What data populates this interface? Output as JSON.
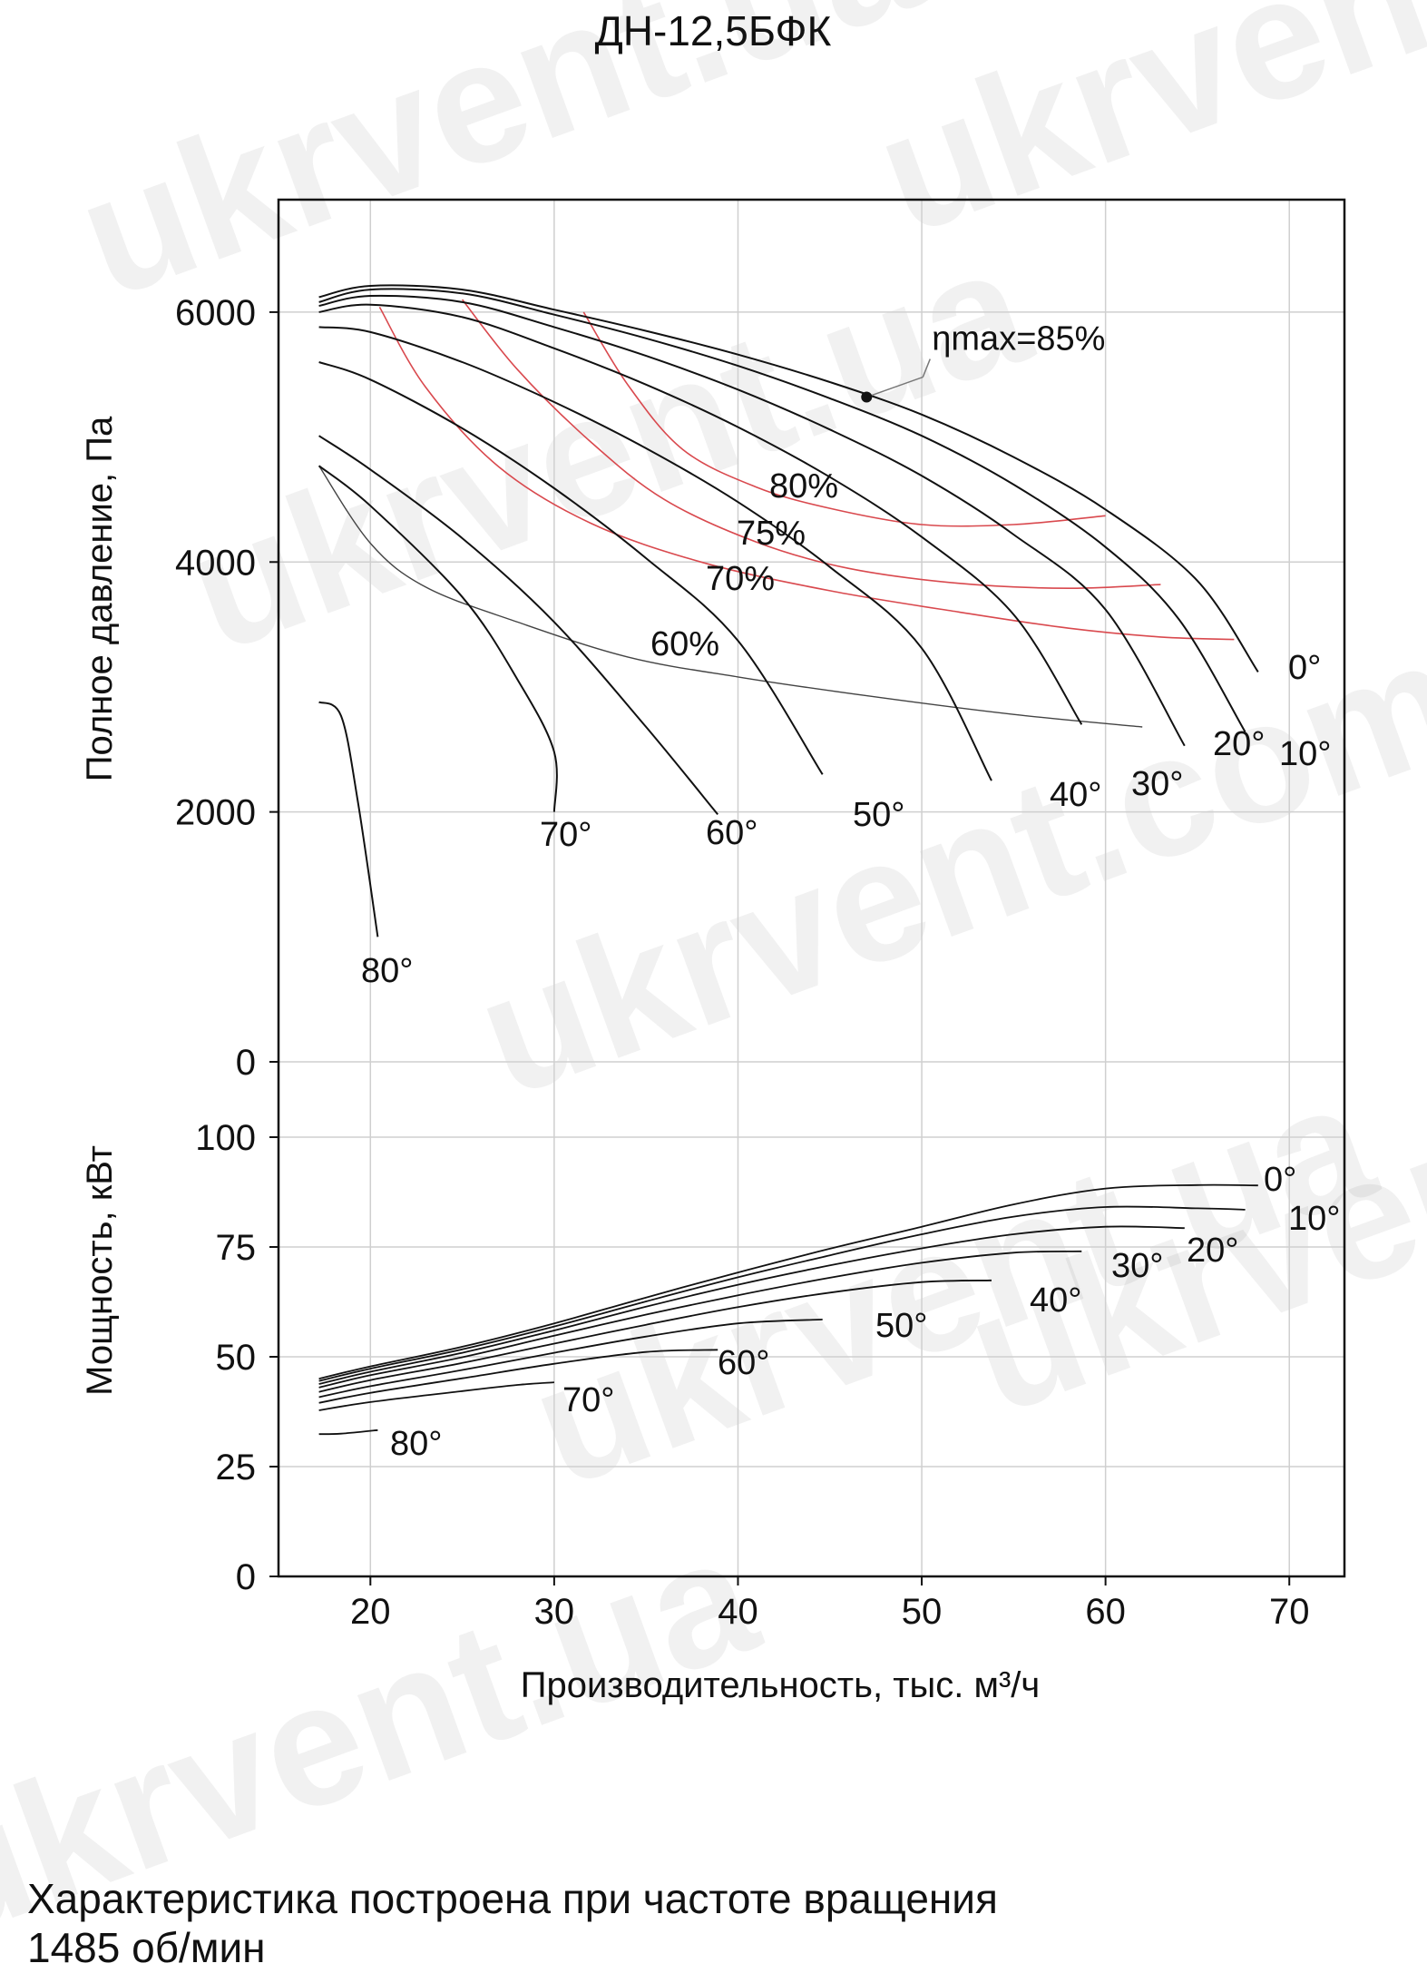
{
  "chart_data": {
    "type": "line",
    "title": "ДН-12,5БФК",
    "watermarks": [
      "ukrvent.ua",
      "ukrvent.com",
      "ukrvent.ua",
      "ukrvent.com",
      "ukrvent.ua",
      "ukrvent.com",
      "ukrvent.ua"
    ],
    "x_axis": {
      "label": "Производительность, тыс. м³/ч",
      "ticks": [
        "20",
        "30",
        "40",
        "50",
        "60",
        "70"
      ],
      "tick_values": [
        20,
        30,
        40,
        50,
        60,
        70
      ],
      "range": [
        15,
        73
      ]
    },
    "pressure_panel": {
      "ylabel": "Полное давление, Па",
      "yticks": [
        "6000",
        "4000",
        "2000",
        "0"
      ],
      "ytick_values": [
        6000,
        4000,
        2000,
        0
      ],
      "range": [
        0,
        6900
      ],
      "blade_curves": [
        {
          "name": "0°",
          "points": [
            [
              17.2,
              6120
            ],
            [
              20,
              6210
            ],
            [
              25,
              6180
            ],
            [
              30,
              6020
            ],
            [
              35,
              5850
            ],
            [
              40,
              5660
            ],
            [
              45,
              5440
            ],
            [
              50,
              5180
            ],
            [
              55,
              4840
            ],
            [
              60,
              4420
            ],
            [
              65,
              3850
            ],
            [
              68.3,
              3120
            ]
          ]
        },
        {
          "name": "10°",
          "points": [
            [
              17.2,
              6080
            ],
            [
              20,
              6180
            ],
            [
              25,
              6150
            ],
            [
              30,
              5980
            ],
            [
              35,
              5790
            ],
            [
              40,
              5570
            ],
            [
              45,
              5310
            ],
            [
              50,
              5010
            ],
            [
              55,
              4620
            ],
            [
              60,
              4120
            ],
            [
              64,
              3540
            ],
            [
              67.6,
              2640
            ]
          ]
        },
        {
          "name": "20°",
          "points": [
            [
              17.2,
              6050
            ],
            [
              20,
              6130
            ],
            [
              25,
              6080
            ],
            [
              30,
              5880
            ],
            [
              35,
              5650
            ],
            [
              40,
              5380
            ],
            [
              45,
              5060
            ],
            [
              50,
              4690
            ],
            [
              55,
              4220
            ],
            [
              60,
              3620
            ],
            [
              64.3,
              2530
            ]
          ]
        },
        {
          "name": "30°",
          "points": [
            [
              17.2,
              6000
            ],
            [
              20,
              6060
            ],
            [
              25,
              5960
            ],
            [
              30,
              5710
            ],
            [
              35,
              5420
            ],
            [
              40,
              5080
            ],
            [
              45,
              4680
            ],
            [
              50,
              4200
            ],
            [
              55,
              3580
            ],
            [
              58.7,
              2700
            ]
          ]
        },
        {
          "name": "40°",
          "points": [
            [
              17.2,
              5880
            ],
            [
              20,
              5840
            ],
            [
              25,
              5600
            ],
            [
              30,
              5280
            ],
            [
              35,
              4910
            ],
            [
              40,
              4480
            ],
            [
              45,
              3960
            ],
            [
              50,
              3310
            ],
            [
              53.8,
              2250
            ]
          ]
        },
        {
          "name": "50°",
          "points": [
            [
              17.2,
              5600
            ],
            [
              20,
              5460
            ],
            [
              25,
              5070
            ],
            [
              30,
              4590
            ],
            [
              35,
              4030
            ],
            [
              40,
              3370
            ],
            [
              44.6,
              2300
            ]
          ]
        },
        {
          "name": "60°",
          "points": [
            [
              17.2,
              5010
            ],
            [
              20,
              4740
            ],
            [
              25,
              4190
            ],
            [
              30,
              3520
            ],
            [
              35,
              2680
            ],
            [
              38.9,
              1980
            ]
          ]
        },
        {
          "name": "70°",
          "points": [
            [
              17.2,
              4770
            ],
            [
              20,
              4450
            ],
            [
              25,
              3720
            ],
            [
              28,
              3060
            ],
            [
              30,
              2480
            ],
            [
              30,
              2000
            ]
          ]
        },
        {
          "name": "80°",
          "points": [
            [
              17.2,
              2880
            ],
            [
              18.4,
              2770
            ],
            [
              19.3,
              2100
            ],
            [
              20.4,
              1000
            ]
          ]
        }
      ],
      "efficiency_curves": [
        {
          "name": "80%",
          "points": [
            [
              31.6,
              6000
            ],
            [
              34,
              5420
            ],
            [
              37,
              4900
            ],
            [
              41,
              4600
            ],
            [
              45,
              4430
            ],
            [
              50,
              4300
            ],
            [
              55,
              4300
            ],
            [
              60,
              4370
            ]
          ]
        },
        {
          "name": "75%",
          "points": [
            [
              25,
              6100
            ],
            [
              28,
              5540
            ],
            [
              32,
              4960
            ],
            [
              36,
              4500
            ],
            [
              41,
              4160
            ],
            [
              46,
              3950
            ],
            [
              52,
              3830
            ],
            [
              58,
              3790
            ],
            [
              63,
              3820
            ]
          ]
        },
        {
          "name": "70%",
          "points": [
            [
              20.5,
              6040
            ],
            [
              23,
              5400
            ],
            [
              27,
              4760
            ],
            [
              32,
              4310
            ],
            [
              38,
              4000
            ],
            [
              45,
              3770
            ],
            [
              52,
              3600
            ],
            [
              58,
              3470
            ],
            [
              63,
              3400
            ],
            [
              67,
              3380
            ]
          ]
        },
        {
          "name": "60%",
          "points": [
            [
              17.2,
              4770
            ],
            [
              20,
              4150
            ],
            [
              23,
              3800
            ],
            [
              28,
              3520
            ],
            [
              34,
              3240
            ],
            [
              40,
              3080
            ],
            [
              47,
              2930
            ],
            [
              55,
              2780
            ],
            [
              62,
              2680
            ]
          ]
        }
      ],
      "eta_max_label": "ηmax=85%",
      "eta_max_point": [
        47,
        5320
      ],
      "labels": [
        "0°",
        "10°",
        "20°",
        "30°",
        "40°",
        "50°",
        "60°",
        "70°",
        "80°",
        "80%",
        "75%",
        "70%",
        "60%"
      ]
    },
    "power_panel": {
      "ylabel": "Мощность, кВт",
      "yticks": [
        "100",
        "75",
        "50",
        "25",
        "0"
      ],
      "ytick_values": [
        100,
        75,
        50,
        25,
        0
      ],
      "range": [
        0,
        100
      ],
      "curves": [
        {
          "name": "0°",
          "points": [
            [
              17.2,
              45
            ],
            [
              20,
              47.8
            ],
            [
              25,
              52.3
            ],
            [
              30,
              57.6
            ],
            [
              35,
              63.5
            ],
            [
              40,
              69.2
            ],
            [
              45,
              74.6
            ],
            [
              50,
              79.6
            ],
            [
              55,
              84.7
            ],
            [
              60,
              88.3
            ],
            [
              65,
              89.1
            ],
            [
              68.3,
              89.0
            ]
          ]
        },
        {
          "name": "10°",
          "points": [
            [
              17.2,
              44.5
            ],
            [
              20,
              47.3
            ],
            [
              25,
              51.7
            ],
            [
              30,
              56.9
            ],
            [
              35,
              62.6
            ],
            [
              40,
              68.1
            ],
            [
              45,
              73.1
            ],
            [
              50,
              77.9
            ],
            [
              55,
              81.9
            ],
            [
              60,
              84.1
            ],
            [
              65,
              83.8
            ],
            [
              67.6,
              83.5
            ]
          ]
        },
        {
          "name": "20°",
          "points": [
            [
              17.2,
              43.8
            ],
            [
              20,
              46.6
            ],
            [
              25,
              50.9
            ],
            [
              30,
              56.0
            ],
            [
              35,
              61.4
            ],
            [
              40,
              66.4
            ],
            [
              45,
              70.8
            ],
            [
              50,
              74.7
            ],
            [
              55,
              77.9
            ],
            [
              60,
              79.6
            ],
            [
              64.3,
              79.3
            ]
          ]
        },
        {
          "name": "30°",
          "points": [
            [
              17.2,
              43
            ],
            [
              20,
              45.8
            ],
            [
              25,
              49.9
            ],
            [
              30,
              54.8
            ],
            [
              35,
              59.6
            ],
            [
              40,
              64.0
            ],
            [
              45,
              68.0
            ],
            [
              50,
              71.4
            ],
            [
              55,
              73.7
            ],
            [
              58.7,
              74.0
            ]
          ]
        },
        {
          "name": "40°",
          "points": [
            [
              17.2,
              42
            ],
            [
              20,
              44.7
            ],
            [
              25,
              48.6
            ],
            [
              30,
              53.0
            ],
            [
              35,
              57.3
            ],
            [
              40,
              61.3
            ],
            [
              45,
              64.6
            ],
            [
              50,
              67.0
            ],
            [
              53.8,
              67.4
            ]
          ]
        },
        {
          "name": "50°",
          "points": [
            [
              17.2,
              40.8
            ],
            [
              20,
              43.3
            ],
            [
              25,
              47.0
            ],
            [
              30,
              50.9
            ],
            [
              35,
              54.6
            ],
            [
              40,
              57.6
            ],
            [
              44.6,
              58.5
            ]
          ]
        },
        {
          "name": "60°",
          "points": [
            [
              17.2,
              39.5
            ],
            [
              20,
              41.8
            ],
            [
              25,
              45.1
            ],
            [
              30,
              48.4
            ],
            [
              35,
              51.1
            ],
            [
              38.9,
              51.6
            ]
          ]
        },
        {
          "name": "70°",
          "points": [
            [
              17.2,
              37.8
            ],
            [
              20,
              39.7
            ],
            [
              25,
              42.2
            ],
            [
              28,
              43.6
            ],
            [
              30,
              44.2
            ]
          ]
        },
        {
          "name": "80°",
          "points": [
            [
              17.2,
              32.4
            ],
            [
              18.4,
              32.5
            ],
            [
              20.4,
              33.3
            ]
          ]
        }
      ],
      "labels": [
        "0°",
        "10°",
        "20°",
        "30°",
        "40°",
        "50°",
        "60°",
        "70°",
        "80°"
      ]
    }
  },
  "caption": {
    "line1": "Характеристика построена при частоте вращения",
    "line2": "1485 об/мин"
  }
}
